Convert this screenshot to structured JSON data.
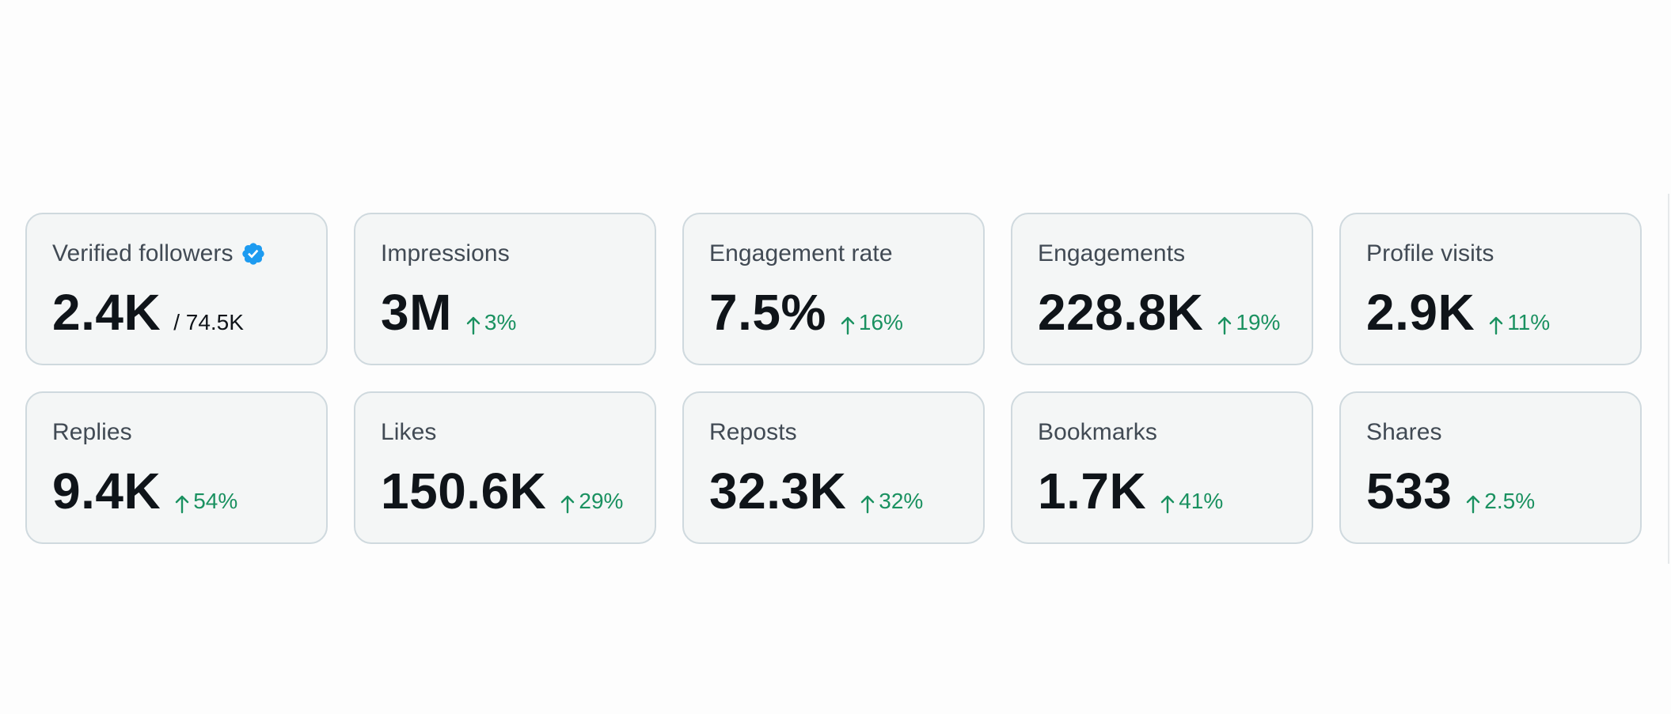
{
  "colors": {
    "background": "#fdfdfd",
    "card_background": "#f4f6f6",
    "card_border": "#cfd9de",
    "label": "#414a54",
    "value": "#0f1419",
    "positive_delta": "#1a9160",
    "verified_badge": "#1d9bf0"
  },
  "cards": [
    {
      "label": "Verified followers",
      "icon": "verified-badge-icon",
      "value": "2.4K",
      "sub": "/ 74.5K"
    },
    {
      "label": "Impressions",
      "value": "3M",
      "delta": "3%",
      "delta_icon": "arrow-up-icon"
    },
    {
      "label": "Engagement rate",
      "value": "7.5%",
      "delta": "16%",
      "delta_icon": "arrow-up-icon"
    },
    {
      "label": "Engagements",
      "value": "228.8K",
      "delta": "19%",
      "delta_icon": "arrow-up-icon"
    },
    {
      "label": "Profile visits",
      "value": "2.9K",
      "delta": "11%",
      "delta_icon": "arrow-up-icon"
    },
    {
      "label": "Replies",
      "value": "9.4K",
      "delta": "54%",
      "delta_icon": "arrow-up-icon"
    },
    {
      "label": "Likes",
      "value": "150.6K",
      "delta": "29%",
      "delta_icon": "arrow-up-icon"
    },
    {
      "label": "Reposts",
      "value": "32.3K",
      "delta": "32%",
      "delta_icon": "arrow-up-icon"
    },
    {
      "label": "Bookmarks",
      "value": "1.7K",
      "delta": "41%",
      "delta_icon": "arrow-up-icon"
    },
    {
      "label": "Shares",
      "value": "533",
      "delta": "2.5%",
      "delta_icon": "arrow-up-icon"
    }
  ]
}
